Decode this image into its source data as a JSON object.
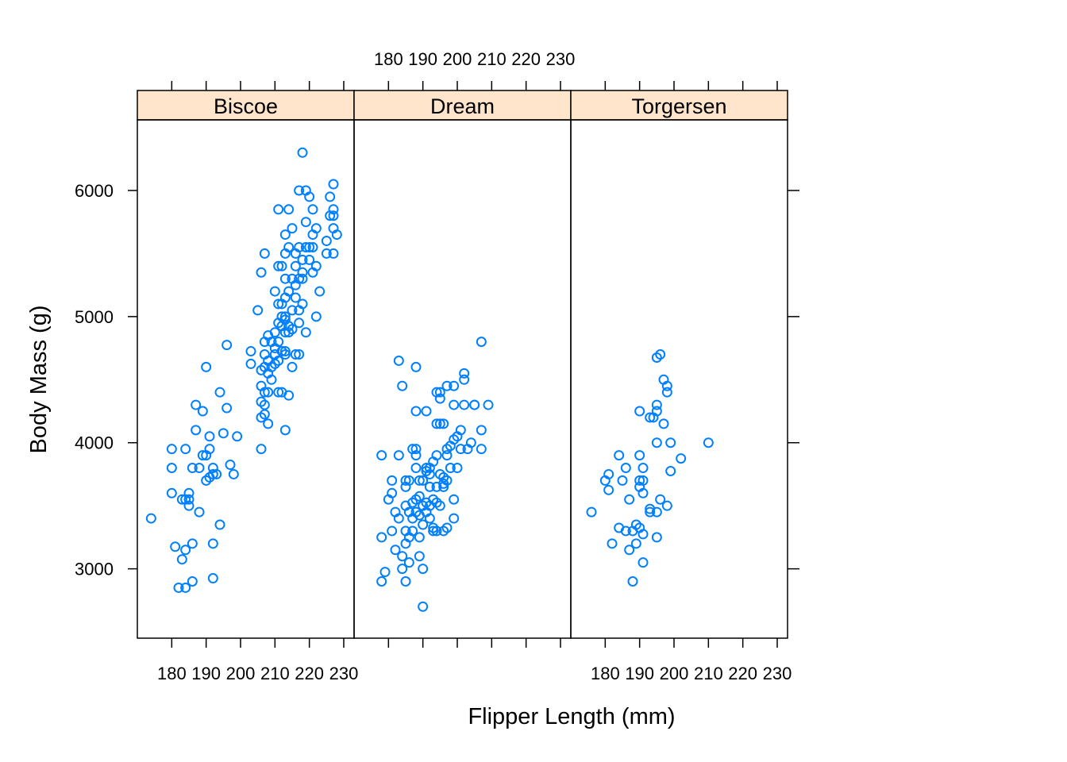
{
  "chart_data": {
    "type": "scatter",
    "xlabel": "Flipper Length (mm)",
    "ylabel": "Body Mass (g)",
    "xlim": [
      170,
      233
    ],
    "ylim": [
      2450,
      6560
    ],
    "x_ticks": [
      180,
      190,
      200,
      210,
      220,
      230
    ],
    "y_ticks": [
      3000,
      4000,
      5000,
      6000
    ],
    "x_ticks_all": [
      180,
      190,
      200,
      210,
      220,
      230
    ],
    "grid": false,
    "legend": "none",
    "colors": {
      "points": "#0080ff",
      "strip": "#ffe5cc",
      "frame": "#000000"
    },
    "panels": [
      {
        "name": "Biscoe",
        "points": [
          [
            174,
            3400
          ],
          [
            180,
            3950
          ],
          [
            180,
            3800
          ],
          [
            180,
            3600
          ],
          [
            181,
            3175
          ],
          [
            182,
            2850
          ],
          [
            183,
            3075
          ],
          [
            183,
            3550
          ],
          [
            184,
            2850
          ],
          [
            184,
            3550
          ],
          [
            184,
            3950
          ],
          [
            185,
            3600
          ],
          [
            184,
            3150
          ],
          [
            185,
            3550
          ],
          [
            185,
            3500
          ],
          [
            186,
            3800
          ],
          [
            186,
            3200
          ],
          [
            186,
            2900
          ],
          [
            187,
            4300
          ],
          [
            187,
            4100
          ],
          [
            188,
            3800
          ],
          [
            188,
            3450
          ],
          [
            189,
            4250
          ],
          [
            189,
            3900
          ],
          [
            190,
            4600
          ],
          [
            190,
            3900
          ],
          [
            190,
            3700
          ],
          [
            191,
            4050
          ],
          [
            191,
            3950
          ],
          [
            191,
            3725
          ],
          [
            192,
            3750
          ],
          [
            192,
            3800
          ],
          [
            192,
            3200
          ],
          [
            192,
            2925
          ],
          [
            193,
            3750
          ],
          [
            194,
            4400
          ],
          [
            194,
            3350
          ],
          [
            195,
            4075
          ],
          [
            196,
            4775
          ],
          [
            196,
            4275
          ],
          [
            197,
            3825
          ],
          [
            198,
            3750
          ],
          [
            199,
            4050
          ],
          [
            203,
            4725
          ],
          [
            203,
            4625
          ],
          [
            205,
            5050
          ],
          [
            206,
            5350
          ],
          [
            206,
            4575
          ],
          [
            206,
            4450
          ],
          [
            206,
            4325
          ],
          [
            206,
            4200
          ],
          [
            206,
            3950
          ],
          [
            207,
            5500
          ],
          [
            207,
            4800
          ],
          [
            207,
            4700
          ],
          [
            207,
            4600
          ],
          [
            207,
            4400
          ],
          [
            207,
            4300
          ],
          [
            207,
            4225
          ],
          [
            208,
            4850
          ],
          [
            208,
            4650
          ],
          [
            208,
            4550
          ],
          [
            208,
            4400
          ],
          [
            208,
            4150
          ],
          [
            209,
            4800
          ],
          [
            209,
            4500
          ],
          [
            209,
            4600
          ],
          [
            210,
            5200
          ],
          [
            210,
            4875
          ],
          [
            210,
            4750
          ],
          [
            210,
            4700
          ],
          [
            210,
            4625
          ],
          [
            211,
            5850
          ],
          [
            211,
            5400
          ],
          [
            211,
            5100
          ],
          [
            211,
            4950
          ],
          [
            211,
            4800
          ],
          [
            211,
            4650
          ],
          [
            211,
            4400
          ],
          [
            212,
            5400
          ],
          [
            212,
            5100
          ],
          [
            212,
            5000
          ],
          [
            212,
            4925
          ],
          [
            212,
            4725
          ],
          [
            212,
            4400
          ],
          [
            213,
            5650
          ],
          [
            213,
            5500
          ],
          [
            213,
            5300
          ],
          [
            213,
            5150
          ],
          [
            213,
            5000
          ],
          [
            213,
            4975
          ],
          [
            213,
            4875
          ],
          [
            213,
            4725
          ],
          [
            213,
            4700
          ],
          [
            213,
            4100
          ],
          [
            214,
            5850
          ],
          [
            214,
            5550
          ],
          [
            214,
            5200
          ],
          [
            214,
            4925
          ],
          [
            214,
            4875
          ],
          [
            214,
            4375
          ],
          [
            215,
            5700
          ],
          [
            215,
            5300
          ],
          [
            215,
            5050
          ],
          [
            215,
            4900
          ],
          [
            215,
            4600
          ],
          [
            216,
            5500
          ],
          [
            216,
            5400
          ],
          [
            216,
            5250
          ],
          [
            216,
            5150
          ],
          [
            216,
            4700
          ],
          [
            217,
            6000
          ],
          [
            217,
            5550
          ],
          [
            217,
            5300
          ],
          [
            217,
            5050
          ],
          [
            217,
            4950
          ],
          [
            217,
            4700
          ],
          [
            218,
            6300
          ],
          [
            218,
            5450
          ],
          [
            218,
            5350
          ],
          [
            218,
            5300
          ],
          [
            218,
            5100
          ],
          [
            219,
            6000
          ],
          [
            219,
            5750
          ],
          [
            219,
            5550
          ],
          [
            219,
            4875
          ],
          [
            220,
            5950
          ],
          [
            220,
            5550
          ],
          [
            220,
            5450
          ],
          [
            221,
            5850
          ],
          [
            221,
            5650
          ],
          [
            221,
            5550
          ],
          [
            221,
            5350
          ],
          [
            222,
            5700
          ],
          [
            222,
            5400
          ],
          [
            222,
            5000
          ],
          [
            223,
            5200
          ],
          [
            225,
            5600
          ],
          [
            225,
            5500
          ],
          [
            226,
            5950
          ],
          [
            226,
            5800
          ],
          [
            227,
            6050
          ],
          [
            227,
            5850
          ],
          [
            227,
            5800
          ],
          [
            227,
            5700
          ],
          [
            227,
            5500
          ],
          [
            228,
            5650
          ]
        ]
      },
      {
        "name": "Dream",
        "points": [
          [
            178,
            3250
          ],
          [
            178,
            3900
          ],
          [
            178,
            2900
          ],
          [
            179,
            2975
          ],
          [
            180,
            3550
          ],
          [
            181,
            3700
          ],
          [
            181,
            3600
          ],
          [
            181,
            3300
          ],
          [
            182,
            3150
          ],
          [
            182,
            3450
          ],
          [
            183,
            3900
          ],
          [
            183,
            4650
          ],
          [
            183,
            3400
          ],
          [
            184,
            4450
          ],
          [
            184,
            3100
          ],
          [
            184,
            3000
          ],
          [
            185,
            3700
          ],
          [
            185,
            3650
          ],
          [
            185,
            3500
          ],
          [
            185,
            3300
          ],
          [
            185,
            3200
          ],
          [
            185,
            2900
          ],
          [
            186,
            3700
          ],
          [
            186,
            3450
          ],
          [
            186,
            3250
          ],
          [
            186,
            3050
          ],
          [
            187,
            3950
          ],
          [
            187,
            3525
          ],
          [
            187,
            3400
          ],
          [
            187,
            3300
          ],
          [
            188,
            3950
          ],
          [
            188,
            3900
          ],
          [
            188,
            4600
          ],
          [
            188,
            4250
          ],
          [
            188,
            3800
          ],
          [
            188,
            3550
          ],
          [
            188,
            3450
          ],
          [
            189,
            3700
          ],
          [
            189,
            3575
          ],
          [
            189,
            3425
          ],
          [
            189,
            3250
          ],
          [
            189,
            3100
          ],
          [
            190,
            3700
          ],
          [
            190,
            3500
          ],
          [
            190,
            3350
          ],
          [
            190,
            3000
          ],
          [
            190,
            2700
          ],
          [
            191,
            4250
          ],
          [
            191,
            3800
          ],
          [
            191,
            3775
          ],
          [
            191,
            3450
          ],
          [
            191,
            3525
          ],
          [
            192,
            3800
          ],
          [
            192,
            3750
          ],
          [
            192,
            3650
          ],
          [
            192,
            3500
          ],
          [
            192,
            3400
          ],
          [
            193,
            3850
          ],
          [
            193,
            3550
          ],
          [
            193,
            3325
          ],
          [
            193,
            3300
          ],
          [
            194,
            4150
          ],
          [
            194,
            3900
          ],
          [
            194,
            4400
          ],
          [
            194,
            3525
          ],
          [
            194,
            3650
          ],
          [
            194,
            3300
          ],
          [
            195,
            4400
          ],
          [
            195,
            4350
          ],
          [
            195,
            4150
          ],
          [
            195,
            3750
          ],
          [
            195,
            3500
          ],
          [
            196,
            4150
          ],
          [
            196,
            3725
          ],
          [
            196,
            3650
          ],
          [
            196,
            3675
          ],
          [
            196,
            3300
          ],
          [
            197,
            4450
          ],
          [
            197,
            3950
          ],
          [
            197,
            3900
          ],
          [
            197,
            3700
          ],
          [
            197,
            3325
          ],
          [
            198,
            3975
          ],
          [
            198,
            3800
          ],
          [
            199,
            4450
          ],
          [
            199,
            4300
          ],
          [
            199,
            4025
          ],
          [
            199,
            3550
          ],
          [
            199,
            3400
          ],
          [
            200,
            4050
          ],
          [
            200,
            3800
          ],
          [
            201,
            4100
          ],
          [
            201,
            3950
          ],
          [
            202,
            4550
          ],
          [
            202,
            4500
          ],
          [
            202,
            4300
          ],
          [
            203,
            3950
          ],
          [
            204,
            4000
          ],
          [
            205,
            4300
          ],
          [
            205,
            4300
          ],
          [
            207,
            4800
          ],
          [
            207,
            4100
          ],
          [
            207,
            3950
          ],
          [
            209,
            4300
          ]
        ]
      },
      {
        "name": "Torgersen",
        "points": [
          [
            176,
            3450
          ],
          [
            180,
            3700
          ],
          [
            181,
            3625
          ],
          [
            181,
            3750
          ],
          [
            182,
            3200
          ],
          [
            184,
            3900
          ],
          [
            184,
            3325
          ],
          [
            185,
            3700
          ],
          [
            186,
            3300
          ],
          [
            186,
            3800
          ],
          [
            187,
            3550
          ],
          [
            187,
            3150
          ],
          [
            188,
            2900
          ],
          [
            188,
            3300
          ],
          [
            189,
            3350
          ],
          [
            189,
            3200
          ],
          [
            190,
            4250
          ],
          [
            190,
            3900
          ],
          [
            190,
            3700
          ],
          [
            190,
            3650
          ],
          [
            190,
            3325
          ],
          [
            191,
            3800
          ],
          [
            191,
            3700
          ],
          [
            191,
            3600
          ],
          [
            191,
            3050
          ],
          [
            191,
            3275
          ],
          [
            193,
            4200
          ],
          [
            193,
            3450
          ],
          [
            193,
            3475
          ],
          [
            194,
            4200
          ],
          [
            195,
            4300
          ],
          [
            195,
            4250
          ],
          [
            195,
            4000
          ],
          [
            195,
            4675
          ],
          [
            195,
            3450
          ],
          [
            195,
            3250
          ],
          [
            196,
            4700
          ],
          [
            196,
            3550
          ],
          [
            197,
            4500
          ],
          [
            197,
            4150
          ],
          [
            198,
            4450
          ],
          [
            198,
            4400
          ],
          [
            198,
            3500
          ],
          [
            199,
            4000
          ],
          [
            199,
            3775
          ],
          [
            202,
            3875
          ],
          [
            210,
            4000
          ]
        ]
      }
    ]
  }
}
